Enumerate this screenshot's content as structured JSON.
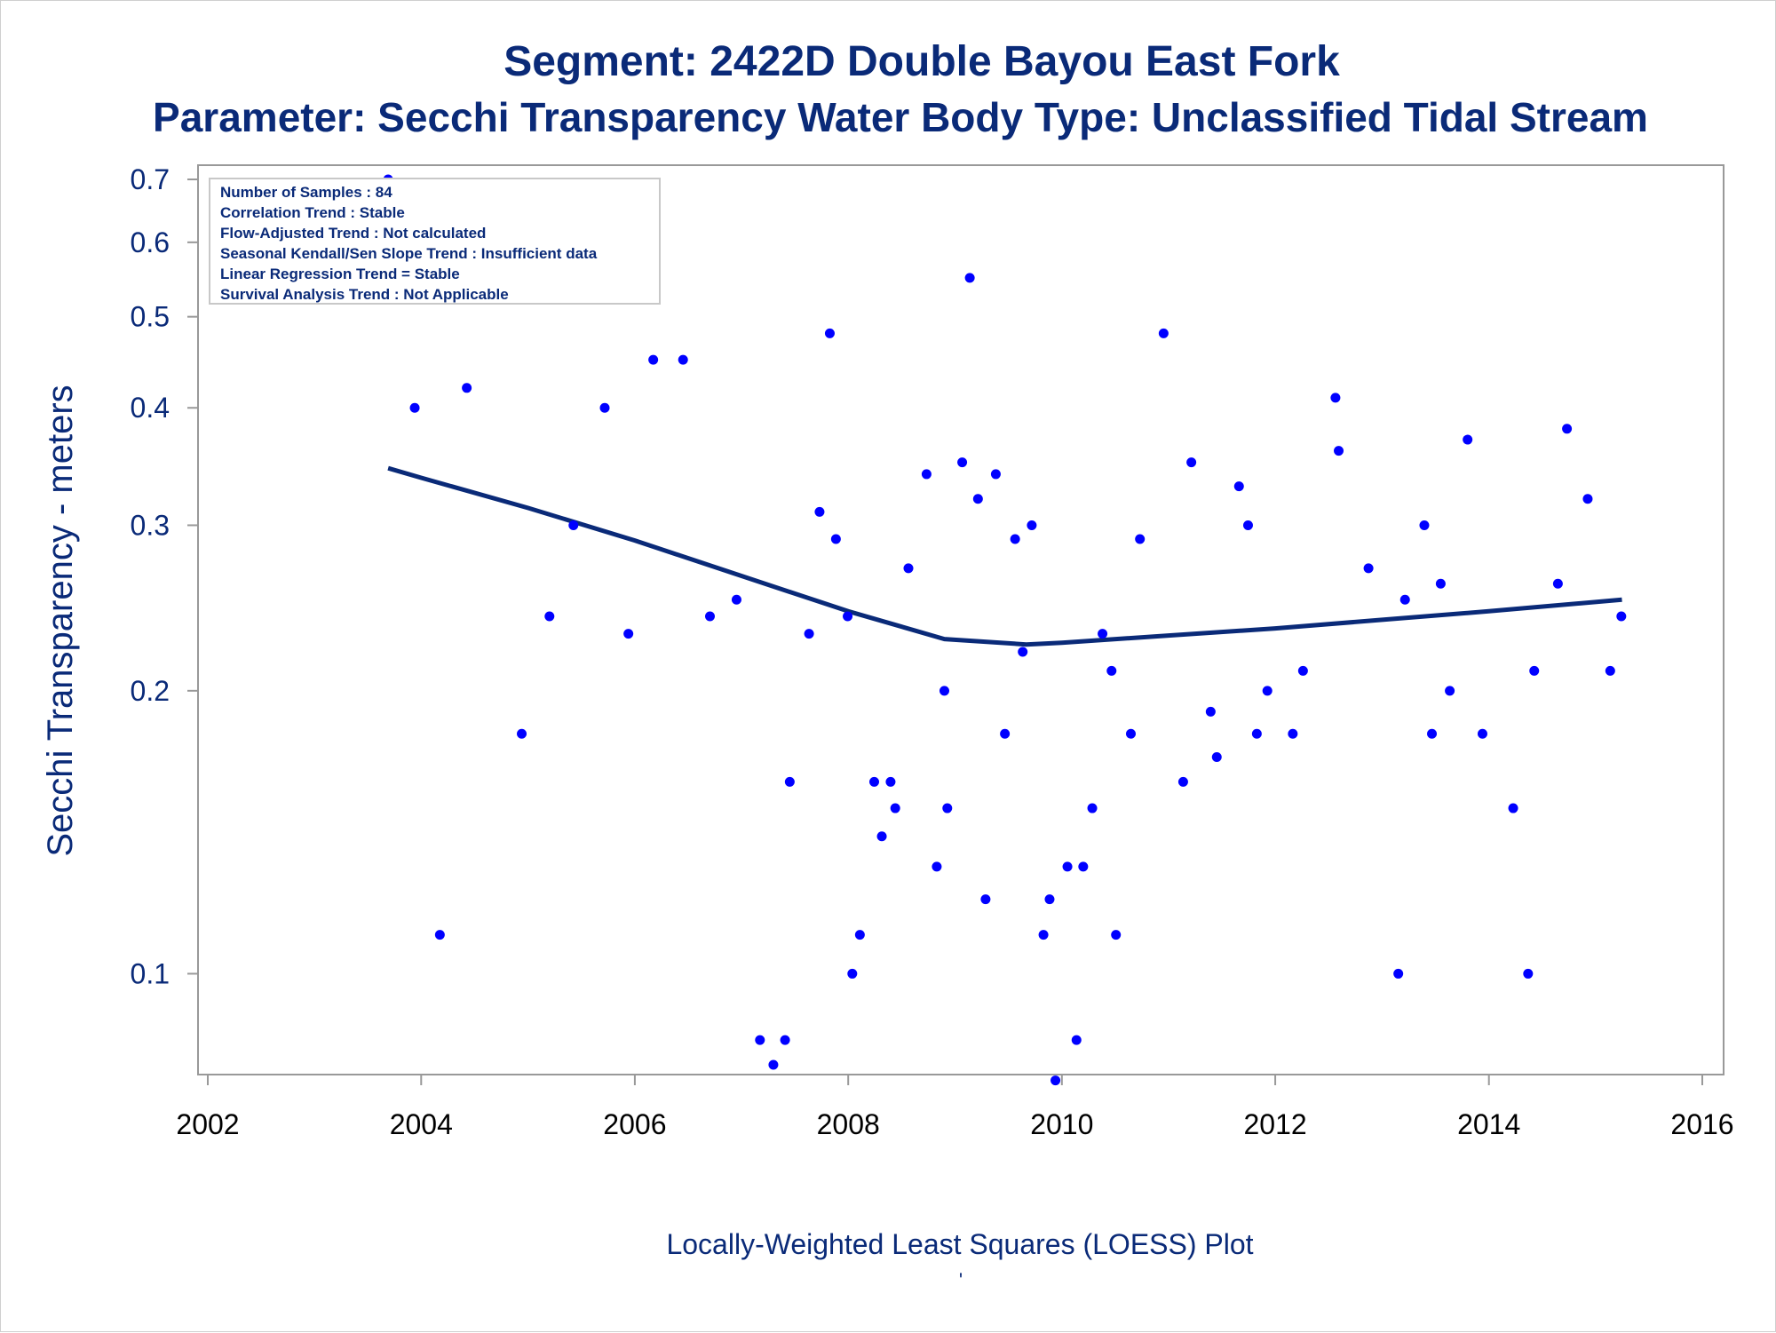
{
  "chart_data": {
    "type": "scatter",
    "title": "Segment: 2422D  Double Bayou East Fork",
    "subtitle": "Parameter: Secchi Transparency   Water Body Type: Unclassified Tidal Stream",
    "xlabel": "Locally-Weighted Least Squares (LOESS) Plot",
    "ylabel": "Secchi Transparency - meters",
    "footnote": "'",
    "y_scale": "log",
    "xlim": [
      "2002-01-01",
      "2016-01-01"
    ],
    "ylim": [
      0.08,
      0.7
    ],
    "x_ticks": [
      "2002",
      "2004",
      "2006",
      "2008",
      "2010",
      "2012",
      "2014",
      "2016"
    ],
    "y_ticks": [
      0.1,
      0.2,
      0.3,
      0.4,
      0.5,
      0.6,
      0.7
    ],
    "y_tick_labels": [
      "0.1",
      "0.2",
      "0.3",
      "0.4",
      "0.5",
      "0.6",
      "0.7"
    ],
    "grid": false,
    "info_box": [
      "Number of Samples : 84",
      "Correlation Trend : Stable",
      "Flow-Adjusted Trend : Not calculated",
      "Seasonal Kendall/Sen Slope Trend : Insufficient data",
      "Linear Regression Trend = Stable",
      "Survival Analysis Trend : Not Applicable"
    ],
    "info_box_position": "top-left",
    "series": [
      {
        "kind": "scatter",
        "color": "#0000ff",
        "points": [
          {
            "x": "2003-09-10",
            "y": 0.7
          },
          {
            "x": "2003-12-10",
            "y": 0.4
          },
          {
            "x": "2004-03-05",
            "y": 0.11
          },
          {
            "x": "2004-06-05",
            "y": 0.42
          },
          {
            "x": "2004-12-10",
            "y": 0.18
          },
          {
            "x": "2005-03-15",
            "y": 0.24
          },
          {
            "x": "2005-06-05",
            "y": 0.3
          },
          {
            "x": "2005-09-20",
            "y": 0.4
          },
          {
            "x": "2005-12-10",
            "y": 0.23
          },
          {
            "x": "2006-03-05",
            "y": 0.45
          },
          {
            "x": "2006-06-15",
            "y": 0.45
          },
          {
            "x": "2006-09-15",
            "y": 0.24
          },
          {
            "x": "2006-12-15",
            "y": 0.25
          },
          {
            "x": "2007-03-05",
            "y": 0.085
          },
          {
            "x": "2007-04-20",
            "y": 0.08
          },
          {
            "x": "2007-05-30",
            "y": 0.085
          },
          {
            "x": "2007-06-15",
            "y": 0.16
          },
          {
            "x": "2007-08-20",
            "y": 0.23
          },
          {
            "x": "2007-09-25",
            "y": 0.31
          },
          {
            "x": "2007-10-30",
            "y": 0.48
          },
          {
            "x": "2007-11-20",
            "y": 0.29
          },
          {
            "x": "2007-12-30",
            "y": 0.24
          },
          {
            "x": "2008-01-15",
            "y": 0.1
          },
          {
            "x": "2008-02-10",
            "y": 0.11
          },
          {
            "x": "2008-03-30",
            "y": 0.16
          },
          {
            "x": "2008-04-25",
            "y": 0.14
          },
          {
            "x": "2008-05-25",
            "y": 0.16
          },
          {
            "x": "2008-06-10",
            "y": 0.15
          },
          {
            "x": "2008-07-25",
            "y": 0.27
          },
          {
            "x": "2008-09-25",
            "y": 0.34
          },
          {
            "x": "2008-10-30",
            "y": 0.13
          },
          {
            "x": "2008-11-25",
            "y": 0.2
          },
          {
            "x": "2008-12-05",
            "y": 0.15
          },
          {
            "x": "2009-01-25",
            "y": 0.35
          },
          {
            "x": "2009-02-20",
            "y": 0.55
          },
          {
            "x": "2009-03-20",
            "y": 0.32
          },
          {
            "x": "2009-04-15",
            "y": 0.12
          },
          {
            "x": "2009-05-20",
            "y": 0.34
          },
          {
            "x": "2009-06-20",
            "y": 0.18
          },
          {
            "x": "2009-07-25",
            "y": 0.29
          },
          {
            "x": "2009-08-20",
            "y": 0.22
          },
          {
            "x": "2009-09-20",
            "y": 0.3
          },
          {
            "x": "2009-10-30",
            "y": 0.11
          },
          {
            "x": "2009-11-20",
            "y": 0.12
          },
          {
            "x": "2009-12-10",
            "y": 0.077
          },
          {
            "x": "2010-01-20",
            "y": 0.13
          },
          {
            "x": "2010-02-20",
            "y": 0.085
          },
          {
            "x": "2010-03-15",
            "y": 0.13
          },
          {
            "x": "2010-04-15",
            "y": 0.15
          },
          {
            "x": "2010-05-20",
            "y": 0.23
          },
          {
            "x": "2010-06-20",
            "y": 0.21
          },
          {
            "x": "2010-07-05",
            "y": 0.11
          },
          {
            "x": "2010-08-25",
            "y": 0.18
          },
          {
            "x": "2010-09-25",
            "y": 0.29
          },
          {
            "x": "2010-12-15",
            "y": 0.48
          },
          {
            "x": "2011-02-20",
            "y": 0.16
          },
          {
            "x": "2011-03-20",
            "y": 0.35
          },
          {
            "x": "2011-05-25",
            "y": 0.19
          },
          {
            "x": "2011-06-15",
            "y": 0.17
          },
          {
            "x": "2011-08-30",
            "y": 0.33
          },
          {
            "x": "2011-09-30",
            "y": 0.3
          },
          {
            "x": "2011-10-30",
            "y": 0.18
          },
          {
            "x": "2011-12-05",
            "y": 0.2
          },
          {
            "x": "2012-03-01",
            "y": 0.18
          },
          {
            "x": "2012-04-05",
            "y": 0.21
          },
          {
            "x": "2012-07-25",
            "y": 0.41
          },
          {
            "x": "2012-08-05",
            "y": 0.36
          },
          {
            "x": "2012-11-15",
            "y": 0.27
          },
          {
            "x": "2013-02-25",
            "y": 0.1
          },
          {
            "x": "2013-03-20",
            "y": 0.25
          },
          {
            "x": "2013-05-25",
            "y": 0.3
          },
          {
            "x": "2013-06-20",
            "y": 0.18
          },
          {
            "x": "2013-07-20",
            "y": 0.26
          },
          {
            "x": "2013-08-20",
            "y": 0.2
          },
          {
            "x": "2013-10-20",
            "y": 0.37
          },
          {
            "x": "2013-12-10",
            "y": 0.18
          },
          {
            "x": "2014-03-25",
            "y": 0.15
          },
          {
            "x": "2014-05-15",
            "y": 0.1
          },
          {
            "x": "2014-06-05",
            "y": 0.21
          },
          {
            "x": "2014-08-25",
            "y": 0.26
          },
          {
            "x": "2014-09-25",
            "y": 0.38
          },
          {
            "x": "2014-12-05",
            "y": 0.32
          },
          {
            "x": "2015-02-20",
            "y": 0.21
          },
          {
            "x": "2015-03-30",
            "y": 0.24
          }
        ]
      },
      {
        "kind": "line",
        "color": "#0a2a78",
        "points": [
          {
            "x": "2003-09-10",
            "y": 0.345
          },
          {
            "x": "2004-01-01",
            "y": 0.337
          },
          {
            "x": "2005-01-01",
            "y": 0.313
          },
          {
            "x": "2006-01-01",
            "y": 0.289
          },
          {
            "x": "2007-01-01",
            "y": 0.265
          },
          {
            "x": "2008-01-01",
            "y": 0.243
          },
          {
            "x": "2008-11-25",
            "y": 0.227
          },
          {
            "x": "2009-09-01",
            "y": 0.224
          },
          {
            "x": "2010-01-01",
            "y": 0.225
          },
          {
            "x": "2011-01-01",
            "y": 0.229
          },
          {
            "x": "2012-01-01",
            "y": 0.233
          },
          {
            "x": "2013-01-01",
            "y": 0.238
          },
          {
            "x": "2014-01-01",
            "y": 0.243
          },
          {
            "x": "2015-04-01",
            "y": 0.25
          }
        ]
      }
    ]
  }
}
